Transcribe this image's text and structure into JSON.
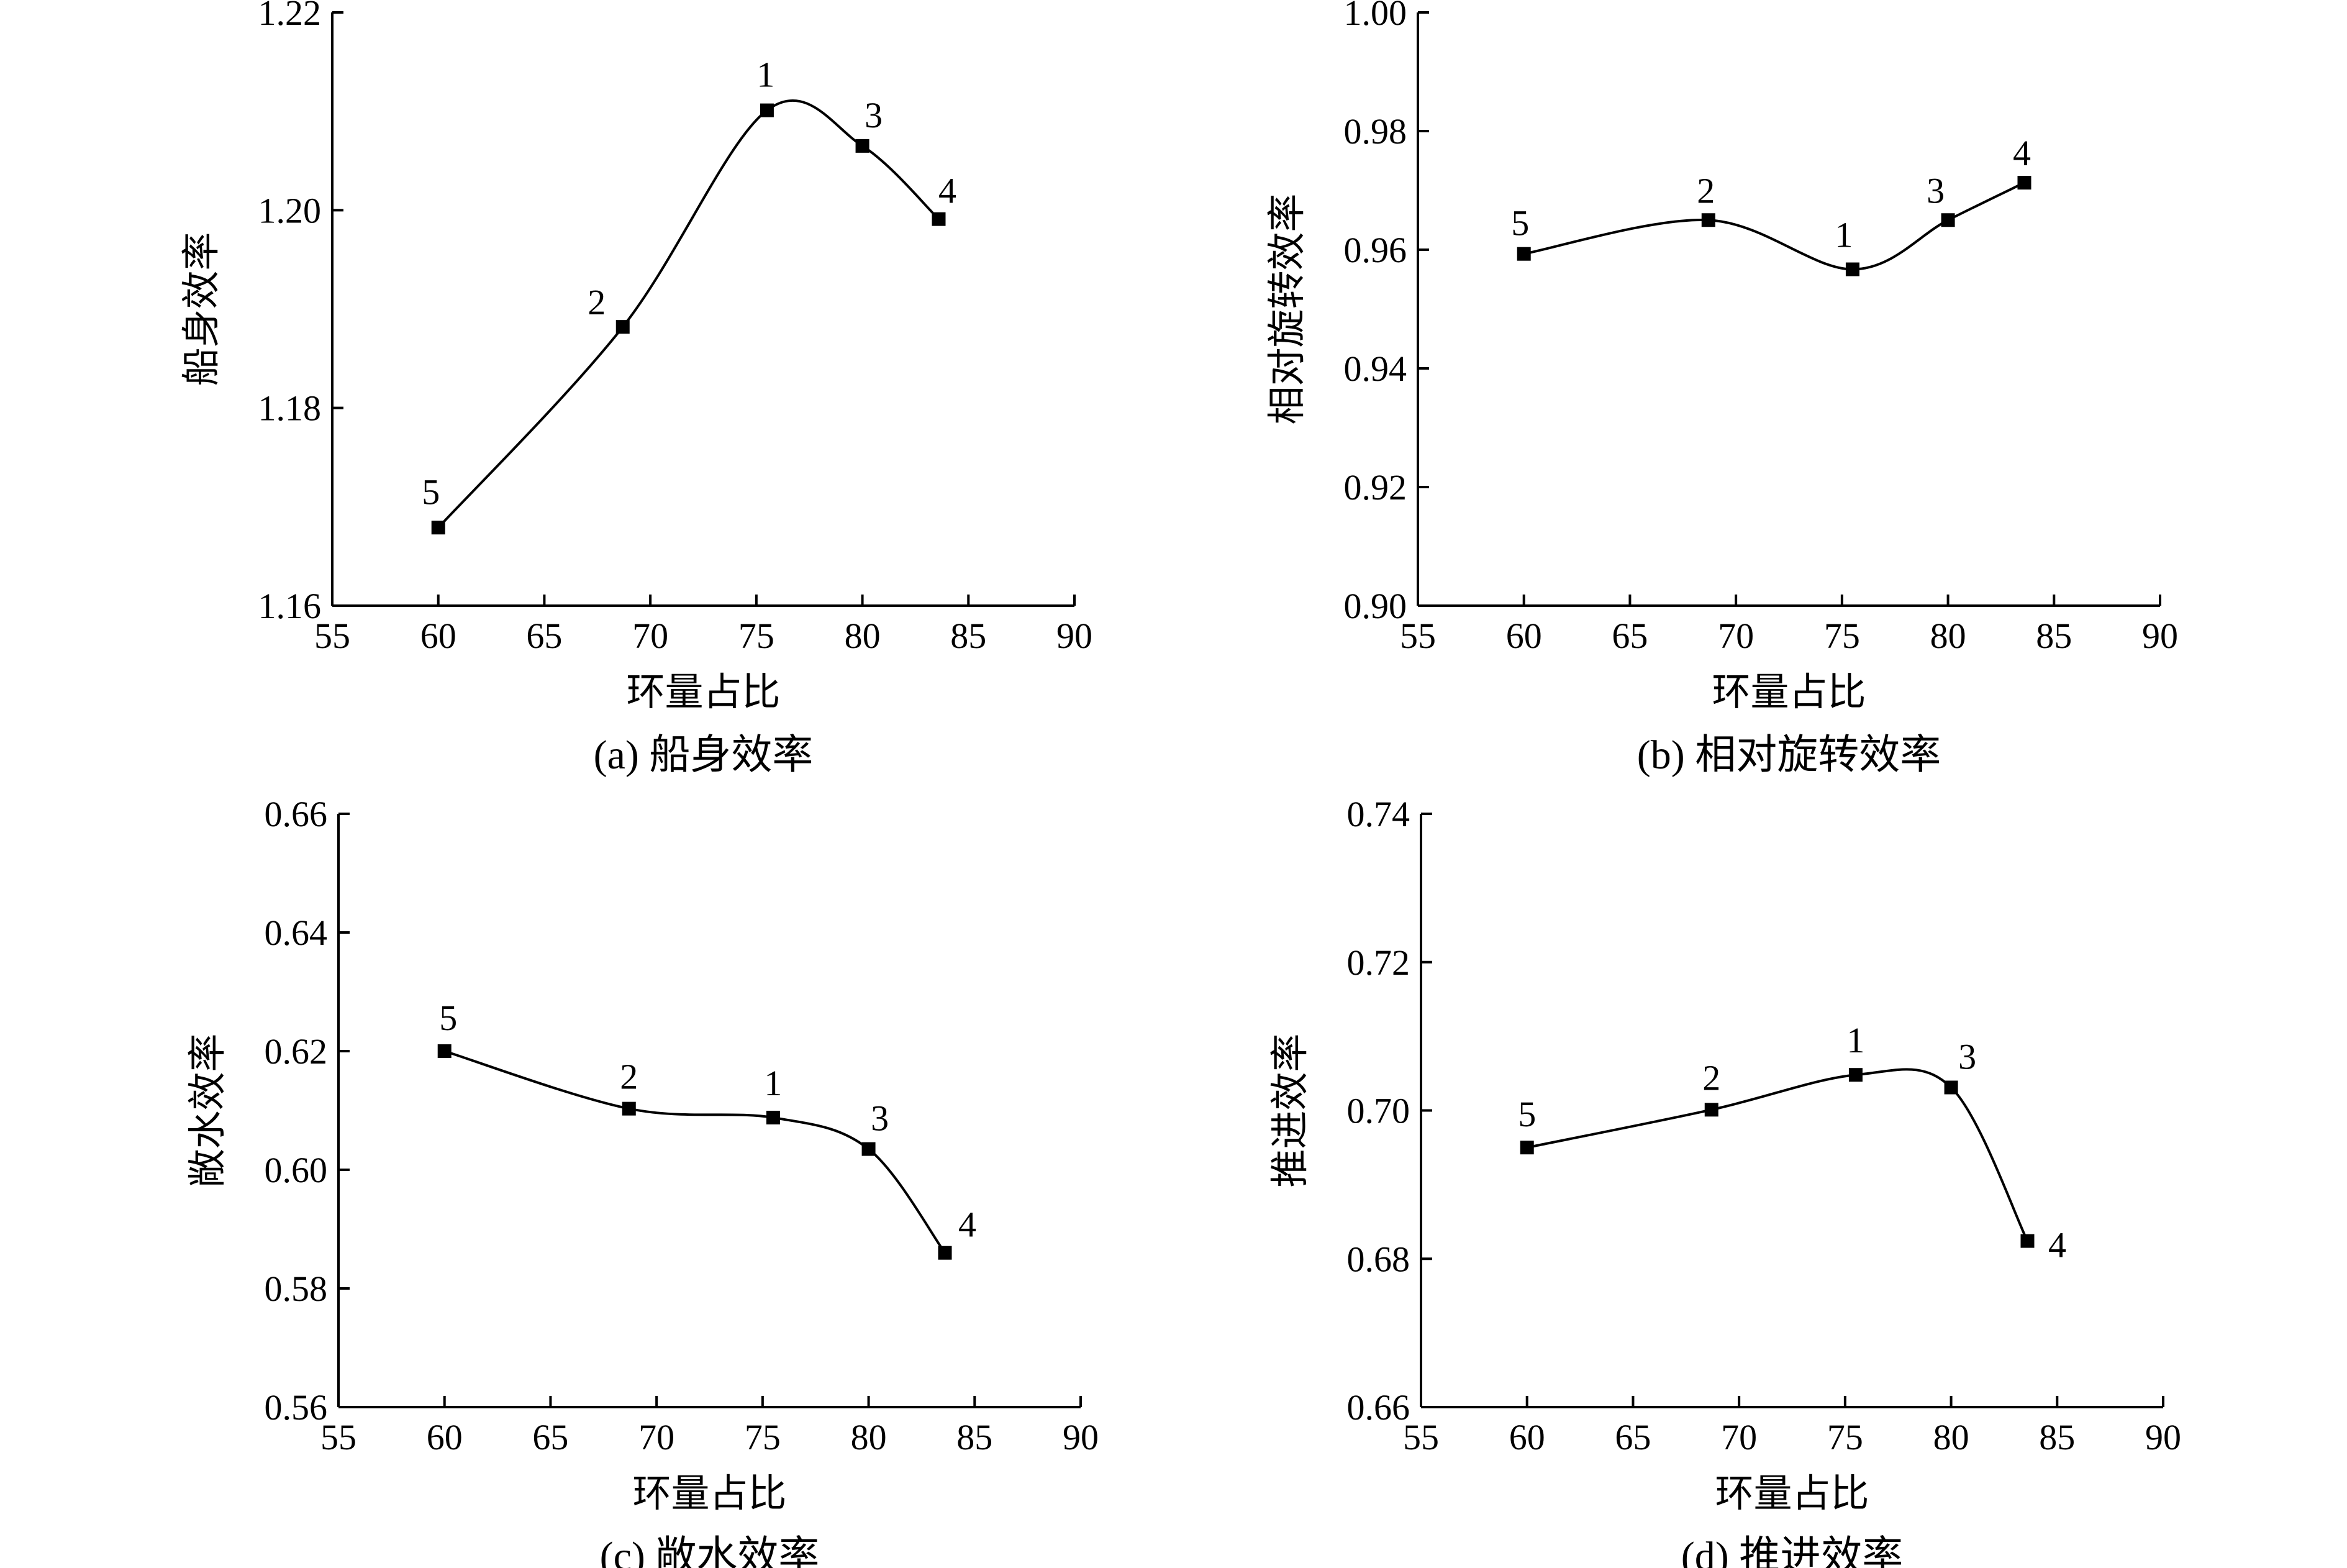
{
  "chart_data": [
    {
      "id": "a",
      "type": "line",
      "caption": "(a) 船身效率",
      "xlabel": "环量占比",
      "ylabel": "船身效率",
      "xlim": [
        55,
        90
      ],
      "ylim": [
        1.16,
        1.22
      ],
      "xticks": [
        55,
        60,
        65,
        70,
        75,
        80,
        85,
        90
      ],
      "yticks": [
        1.16,
        1.18,
        1.2,
        1.22
      ],
      "ytick_labels": [
        "1.16",
        "1.18",
        "1.20",
        "1.22"
      ],
      "points": [
        {
          "label": "5",
          "x": 60,
          "y": 1.1679
        },
        {
          "label": "2",
          "x": 68.7,
          "y": 1.1882
        },
        {
          "label": "1",
          "x": 75.5,
          "y": 1.2101
        },
        {
          "label": "3",
          "x": 80,
          "y": 1.2065
        },
        {
          "label": "4",
          "x": 83.6,
          "y": 1.1991
        }
      ]
    },
    {
      "id": "b",
      "type": "line",
      "caption": "(b) 相对旋转效率",
      "xlabel": "环量占比",
      "ylabel": "相对旋转效率",
      "xlim": [
        55,
        90
      ],
      "ylim": [
        0.9,
        1.0
      ],
      "xticks": [
        55,
        60,
        65,
        70,
        75,
        80,
        85,
        90
      ],
      "yticks": [
        0.9,
        0.92,
        0.94,
        0.96,
        0.98,
        1.0
      ],
      "ytick_labels": [
        "0.90",
        "0.92",
        "0.94",
        "0.96",
        "0.98",
        "1.00"
      ],
      "points": [
        {
          "label": "5",
          "x": 60,
          "y": 0.9593
        },
        {
          "label": "2",
          "x": 68.7,
          "y": 0.965
        },
        {
          "label": "1",
          "x": 75.5,
          "y": 0.9567
        },
        {
          "label": "3",
          "x": 80,
          "y": 0.965
        },
        {
          "label": "4",
          "x": 83.6,
          "y": 0.9713
        }
      ]
    },
    {
      "id": "c",
      "type": "line",
      "caption": "(c) 敞水效率",
      "xlabel": "环量占比",
      "ylabel": "敞水效率",
      "xlim": [
        55,
        90
      ],
      "ylim": [
        0.56,
        0.66
      ],
      "xticks": [
        55,
        60,
        65,
        70,
        75,
        80,
        85,
        90
      ],
      "yticks": [
        0.56,
        0.58,
        0.6,
        0.62,
        0.64,
        0.66
      ],
      "ytick_labels": [
        "0.56",
        "0.58",
        "0.60",
        "0.62",
        "0.64",
        "0.66"
      ],
      "points": [
        {
          "label": "5",
          "x": 60,
          "y": 0.62
        },
        {
          "label": "2",
          "x": 68.7,
          "y": 0.6103
        },
        {
          "label": "1",
          "x": 75.5,
          "y": 0.6088
        },
        {
          "label": "3",
          "x": 80,
          "y": 0.6035
        },
        {
          "label": "4",
          "x": 83.6,
          "y": 0.586
        }
      ]
    },
    {
      "id": "d",
      "type": "line",
      "caption": "(d) 推进效率",
      "xlabel": "环量占比",
      "ylabel": "推进效率",
      "xlim": [
        55,
        90
      ],
      "ylim": [
        0.66,
        0.74
      ],
      "xticks": [
        55,
        60,
        65,
        70,
        75,
        80,
        85,
        90
      ],
      "yticks": [
        0.66,
        0.68,
        0.7,
        0.72,
        0.74
      ],
      "ytick_labels": [
        "0.66",
        "0.68",
        "0.70",
        "0.72",
        "0.74"
      ],
      "points": [
        {
          "label": "5",
          "x": 60,
          "y": 0.695
        },
        {
          "label": "2",
          "x": 68.7,
          "y": 0.7001
        },
        {
          "label": "1",
          "x": 75.5,
          "y": 0.7048
        },
        {
          "label": "3",
          "x": 80,
          "y": 0.7031
        },
        {
          "label": "4",
          "x": 83.6,
          "y": 0.6824
        }
      ]
    }
  ]
}
